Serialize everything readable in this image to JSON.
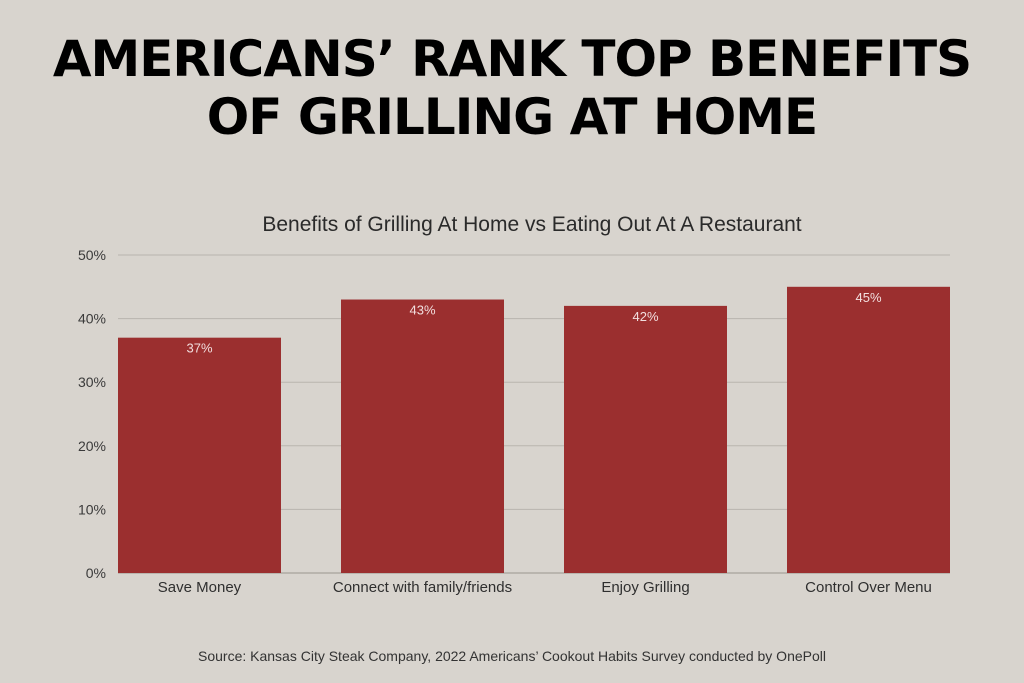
{
  "headline": {
    "line1": "AMERICANS’ RANK TOP BENEFITS",
    "line2": "OF GRILLING AT HOME"
  },
  "chart_data": {
    "type": "bar",
    "title": "Benefits of Grilling At Home vs Eating Out At A Restaurant",
    "categories": [
      "Save Money",
      "Connect with family/friends",
      "Enjoy Grilling",
      "Control Over Menu"
    ],
    "values": [
      37,
      43,
      42,
      45
    ],
    "data_labels": [
      "37%",
      "43%",
      "42%",
      "45%"
    ],
    "y_ticks": [
      "0%",
      "10%",
      "20%",
      "30%",
      "40%",
      "50%"
    ],
    "ylim": [
      0,
      50
    ],
    "grid": true,
    "bar_color": "#9b2f2f",
    "xlabel": "",
    "ylabel": ""
  },
  "source": "Source: Kansas City Steak Company, 2022 Americans’ Cookout Habits Survey conducted by OnePoll",
  "colors": {
    "background": "#d8d4ce",
    "bar": "#9b2f2f",
    "gridline": "#b9b5ae"
  }
}
